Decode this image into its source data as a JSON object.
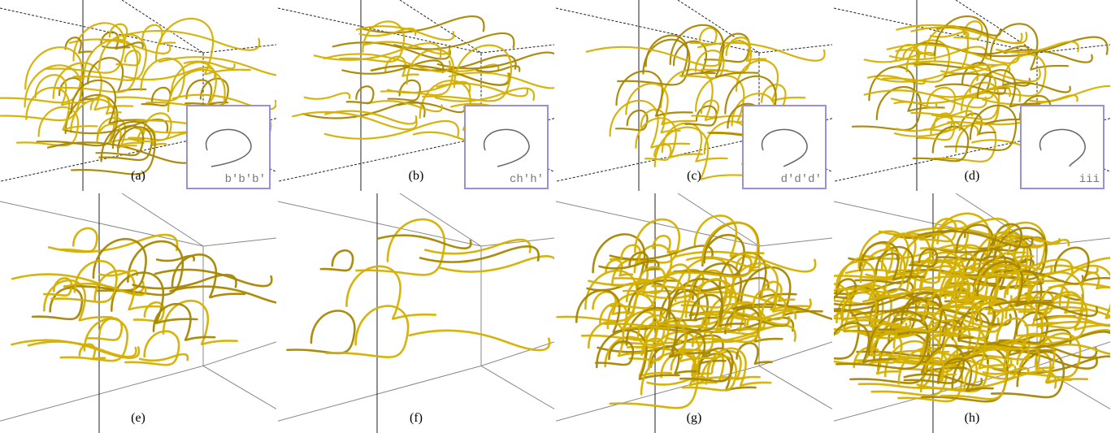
{
  "panels": [
    {
      "label": "(a)",
      "inset_label": "b'b'b'"
    },
    {
      "label": "(b)",
      "inset_label": "ch'h'"
    },
    {
      "label": "(c)",
      "inset_label": "d'd'd'"
    },
    {
      "label": "(d)",
      "inset_label": "iii"
    },
    {
      "label": "(e)"
    },
    {
      "label": "(f)"
    },
    {
      "label": "(g)"
    },
    {
      "label": "(h)"
    }
  ]
}
